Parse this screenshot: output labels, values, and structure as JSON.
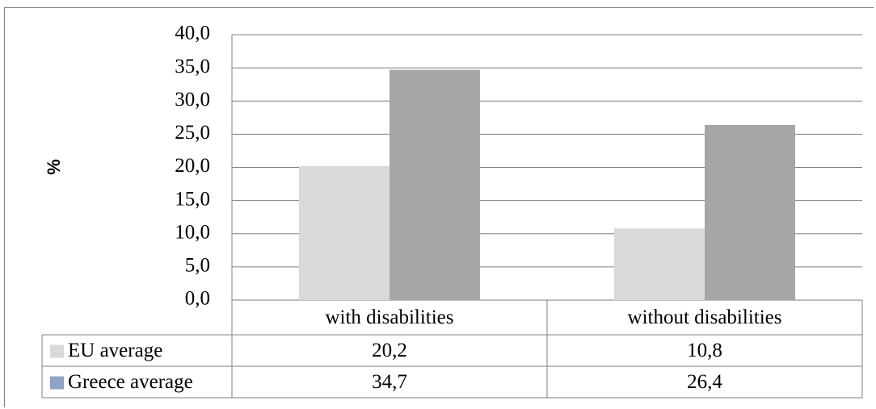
{
  "chart_data": {
    "type": "bar",
    "ylabel": "%",
    "ylim": [
      0,
      40
    ],
    "yticks": [
      "0,0",
      "5,0",
      "10,0",
      "15,0",
      "20,0",
      "25,0",
      "30,0",
      "35,0",
      "40,0"
    ],
    "categories": [
      "with disabilities",
      "without disabilities"
    ],
    "series": [
      {
        "name": "EU average",
        "color": "#d9d9d9",
        "values": [
          20.2,
          10.8
        ],
        "labels": [
          "20,2",
          "10,8"
        ],
        "legend_color": "#d9d9d9"
      },
      {
        "name": "Greece average",
        "color": "#a6a6a6",
        "values": [
          34.7,
          26.4
        ],
        "labels": [
          "34,7",
          "26,4"
        ],
        "legend_color": "#8ea3c8"
      }
    ],
    "grid": true,
    "legend": "data-table-left"
  }
}
